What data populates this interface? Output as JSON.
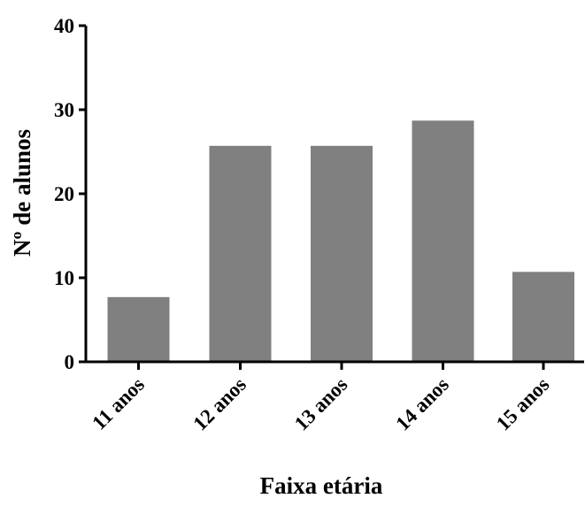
{
  "chart_data": {
    "type": "bar",
    "title": "",
    "xlabel": "Faixa etária",
    "ylabel": "Nº de alunos",
    "categories": [
      "11 anos",
      "12 anos",
      "13 anos",
      "14 anos",
      "15 anos"
    ],
    "values": [
      7.7,
      25.7,
      25.7,
      28.7,
      10.7
    ],
    "ylim": [
      0,
      40
    ],
    "yticks": [
      0,
      10,
      20,
      30,
      40
    ],
    "bar_color": "#808080",
    "grid": false,
    "legend": "none"
  }
}
